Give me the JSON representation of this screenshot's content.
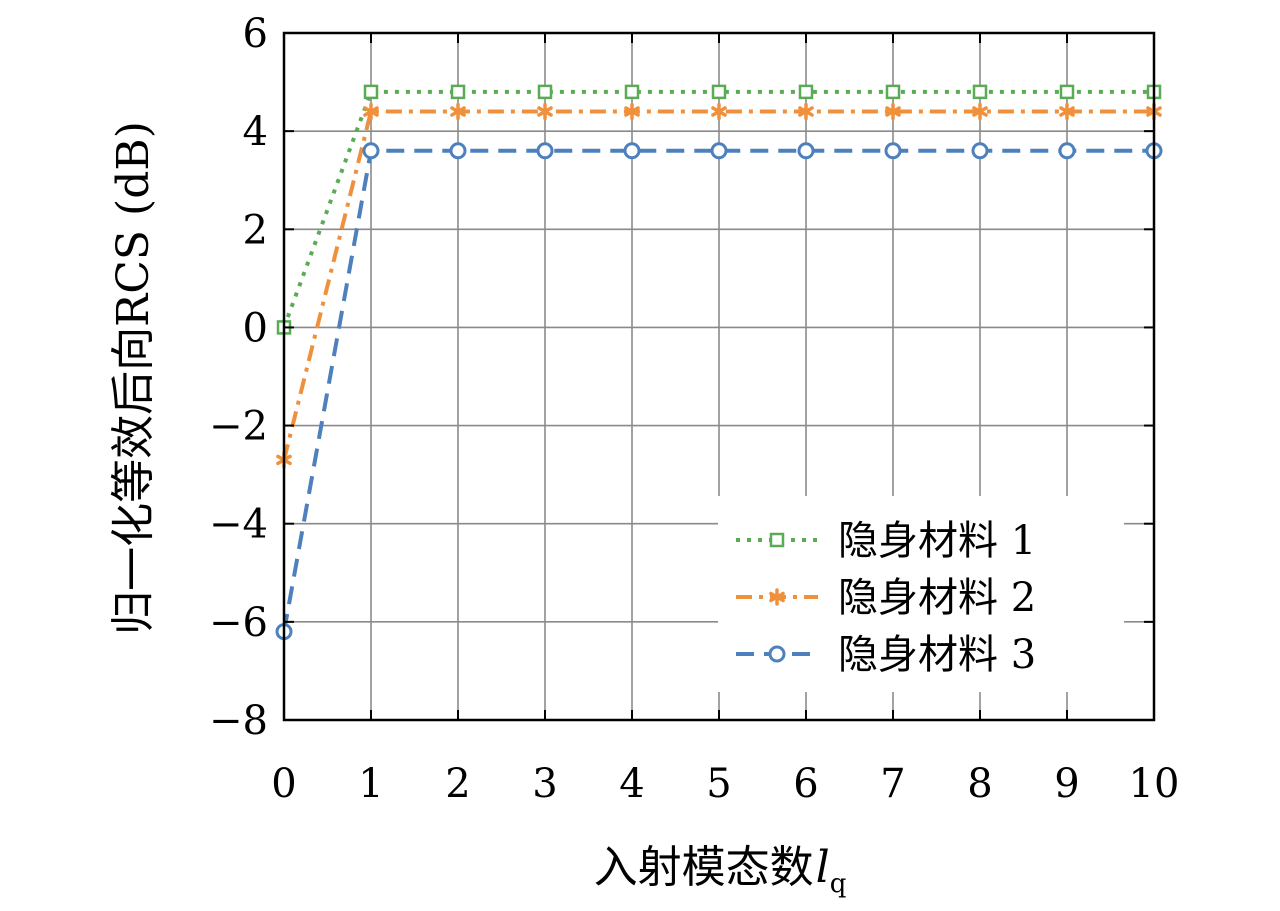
{
  "chart_data": {
    "type": "line",
    "xlabel": "入射模态数",
    "xlabel_var": "l",
    "xlabel_sub": "q",
    "ylabel": "归一化等效后向RCS (dB)",
    "xlim": [
      0,
      10
    ],
    "ylim": [
      -8,
      6
    ],
    "xticks": [
      "0",
      "1",
      "2",
      "3",
      "4",
      "5",
      "6",
      "7",
      "8",
      "9",
      "10"
    ],
    "yticks": [
      "-8",
      "-6",
      "-4",
      "-2",
      "0",
      "2",
      "4",
      "6"
    ],
    "grid": true,
    "legend_position": "bottom-right",
    "x": [
      0,
      1,
      2,
      3,
      4,
      5,
      6,
      7,
      8,
      9,
      10
    ],
    "series": [
      {
        "name": "隐身材料 1",
        "color": "#5aaa56",
        "line_style": "dotted",
        "marker": "square",
        "values": [
          0,
          4.8,
          4.8,
          4.8,
          4.8,
          4.8,
          4.8,
          4.8,
          4.8,
          4.8,
          4.8
        ]
      },
      {
        "name": "隐身材料 2",
        "color": "#f0903c",
        "line_style": "dash-dot",
        "marker": "asterisk",
        "values": [
          -2.7,
          4.4,
          4.4,
          4.4,
          4.4,
          4.4,
          4.4,
          4.4,
          4.4,
          4.4,
          4.4
        ]
      },
      {
        "name": "隐身材料 3",
        "color": "#4d80bd",
        "line_style": "dashed",
        "marker": "circle",
        "values": [
          -6.2,
          3.6,
          3.6,
          3.6,
          3.6,
          3.6,
          3.6,
          3.6,
          3.6,
          3.6,
          3.6
        ]
      }
    ]
  }
}
